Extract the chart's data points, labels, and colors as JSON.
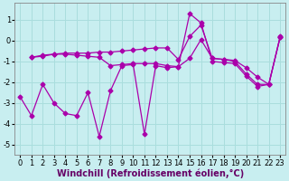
{
  "xlabel": "Windchill (Refroidissement éolien,°C)",
  "bg_color": "#c8eef0",
  "line_color": "#aa00aa",
  "grid_color": "#aadddd",
  "xlim": [
    -0.5,
    23.5
  ],
  "ylim": [
    -5.5,
    1.8
  ],
  "yticks": [
    -5,
    -4,
    -3,
    -2,
    -1,
    0,
    1
  ],
  "xticks": [
    0,
    1,
    2,
    3,
    4,
    5,
    6,
    7,
    8,
    9,
    10,
    11,
    12,
    13,
    14,
    15,
    16,
    17,
    18,
    19,
    20,
    21,
    22,
    23
  ],
  "series1_x": [
    1,
    2,
    3,
    4,
    5,
    6,
    7,
    8,
    9,
    10,
    11,
    12,
    13,
    14,
    15,
    16,
    17,
    18,
    19,
    20,
    21,
    22,
    23
  ],
  "series1_y": [
    -0.8,
    -0.7,
    -0.65,
    -0.6,
    -0.6,
    -0.6,
    -0.55,
    -0.55,
    -0.5,
    -0.45,
    -0.4,
    -0.35,
    -0.35,
    -0.9,
    0.2,
    0.75,
    -0.85,
    -0.9,
    -1.0,
    -1.6,
    -2.1,
    -2.1,
    0.2
  ],
  "series2_x": [
    0,
    1,
    2,
    3,
    4,
    5,
    6,
    7,
    8,
    9,
    10,
    11,
    12,
    13,
    14,
    15,
    16,
    17,
    18,
    19,
    20,
    21,
    22,
    23
  ],
  "series2_y": [
    -2.7,
    -3.6,
    -2.1,
    -3.0,
    -3.5,
    -3.6,
    -2.5,
    -4.6,
    -2.4,
    -1.2,
    -1.15,
    -4.5,
    -1.2,
    -1.3,
    -1.25,
    1.3,
    0.85,
    -1.0,
    -1.05,
    -1.1,
    -1.7,
    -2.2,
    -2.1,
    0.15
  ],
  "series3_x": [
    1,
    2,
    3,
    4,
    5,
    6,
    7,
    8,
    9,
    10,
    11,
    12,
    13,
    14,
    15,
    16,
    17,
    18,
    19,
    20,
    21,
    22,
    23
  ],
  "series3_y": [
    -0.8,
    -0.75,
    -0.65,
    -0.65,
    -0.7,
    -0.75,
    -0.8,
    -1.2,
    -1.15,
    -1.1,
    -1.1,
    -1.1,
    -1.2,
    -1.25,
    -0.85,
    0.05,
    -0.85,
    -0.9,
    -0.95,
    -1.3,
    -1.75,
    -2.1,
    0.15
  ],
  "marker": "D",
  "marker_size": 2.5,
  "linewidth": 0.9,
  "tick_fontsize": 6.0,
  "xlabel_fontsize": 7.0
}
